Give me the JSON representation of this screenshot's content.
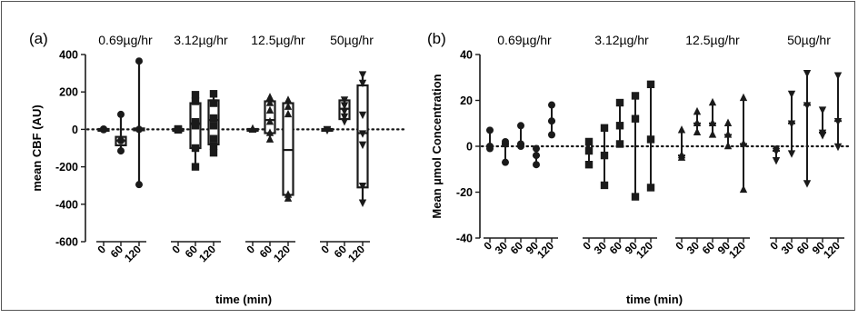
{
  "chart_data": [
    {
      "type": "box",
      "panel_label": "(a)",
      "ylabel": "mean CBF (AU)",
      "xlabel": "time (min)",
      "ylim": [
        -600,
        400
      ],
      "yticks": [
        -600,
        -400,
        -200,
        0,
        200,
        400
      ],
      "reference_line": 0,
      "groups": [
        {
          "label": "0.69µg/hr",
          "marker": "circle",
          "times": [
            "0",
            "60",
            "120"
          ],
          "boxes": [
            {
              "min": -3,
              "q1": -2,
              "median": 0,
              "q3": 2,
              "max": 3,
              "points": [
                0,
                -2,
                2
              ]
            },
            {
              "min": -115,
              "q1": -85,
              "median": -60,
              "q3": -40,
              "max": 80,
              "points": [
                80,
                -60,
                -115
              ]
            },
            {
              "min": -295,
              "q1": -5,
              "median": 0,
              "q3": 5,
              "max": 365,
              "points": [
                365,
                0,
                -295
              ]
            }
          ]
        },
        {
          "label": "3.12µg/hr",
          "marker": "square",
          "times": [
            "0",
            "60",
            "120"
          ],
          "boxes": [
            {
              "min": -3,
              "q1": -2,
              "median": 0,
              "q3": 2,
              "max": 3,
              "points": [
                0,
                -2,
                2
              ]
            },
            {
              "min": -200,
              "q1": -100,
              "median": 30,
              "q3": 140,
              "max": 185,
              "points": [
                185,
                150,
                40,
                20,
                -100,
                -200
              ]
            },
            {
              "min": -125,
              "q1": -80,
              "median": 50,
              "q3": 155,
              "max": 190,
              "points": [
                190,
                140,
                60,
                20,
                -50,
                -90,
                -125
              ]
            }
          ]
        },
        {
          "label": "12.5µg/hr",
          "marker": "triangle-up",
          "times": [
            "0",
            "60",
            "120"
          ],
          "boxes": [
            {
              "min": -3,
              "q1": -2,
              "median": 0,
              "q3": 2,
              "max": 3,
              "points": [
                0,
                -2,
                2
              ]
            },
            {
              "min": -55,
              "q1": -20,
              "median": 50,
              "q3": 150,
              "max": 170,
              "points": [
                170,
                140,
                100,
                40,
                -20,
                -55
              ]
            },
            {
              "min": -370,
              "q1": -350,
              "median": -110,
              "q3": 140,
              "max": 160,
              "points": [
                155,
                120,
                80,
                -350,
                -370
              ]
            }
          ]
        },
        {
          "label": "50µg/hr",
          "marker": "triangle-down",
          "times": [
            "0",
            "60",
            "120"
          ],
          "boxes": [
            {
              "min": -3,
              "q1": -2,
              "median": 0,
              "q3": 2,
              "max": 3,
              "points": [
                0,
                -2,
                2
              ]
            },
            {
              "min": 40,
              "q1": 55,
              "median": 110,
              "q3": 155,
              "max": 165,
              "points": [
                160,
                130,
                100,
                70,
                45
              ]
            },
            {
              "min": -390,
              "q1": -310,
              "median": -20,
              "q3": 235,
              "max": 300,
              "points": [
                295,
                250,
                80,
                -20,
                -80,
                -300,
                -390
              ]
            }
          ]
        }
      ]
    },
    {
      "type": "scatter",
      "panel_label": "(b)",
      "ylabel": "Mean µmol Concentration",
      "xlabel": "time (min)",
      "ylim": [
        -40,
        40
      ],
      "yticks": [
        -40,
        -20,
        0,
        20,
        40
      ],
      "reference_line": 0,
      "groups": [
        {
          "label": "0.69µg/hr",
          "marker": "circle",
          "times": [
            "0",
            "30",
            "60",
            "90",
            "120"
          ],
          "points": [
            {
              "min": -1,
              "mid": 0,
              "max": 7
            },
            {
              "min": -7,
              "mid": 1,
              "max": 2
            },
            {
              "min": 0,
              "mid": 1,
              "max": 9
            },
            {
              "min": -8,
              "mid": -4,
              "max": -1
            },
            {
              "min": 5,
              "mid": 11,
              "max": 18
            }
          ]
        },
        {
          "label": "3.12µg/hr",
          "marker": "square",
          "times": [
            "0",
            "30",
            "60",
            "90",
            "120"
          ],
          "points": [
            {
              "min": -8,
              "mid": -2,
              "max": 2
            },
            {
              "min": -17,
              "mid": -4,
              "max": 8
            },
            {
              "min": 1,
              "mid": 9,
              "max": 19
            },
            {
              "min": -22,
              "mid": 12,
              "max": 22
            },
            {
              "min": -18,
              "mid": 3,
              "max": 27
            }
          ]
        },
        {
          "label": "12.5µg/hr",
          "marker": "triangle-up",
          "times": [
            "0",
            "30",
            "60",
            "90",
            "120"
          ],
          "points": [
            {
              "min": -5,
              "mid": -4,
              "max": 7
            },
            {
              "min": 6,
              "mid": 10,
              "max": 15
            },
            {
              "min": 5,
              "mid": 10,
              "max": 19
            },
            {
              "min": 0,
              "mid": 5,
              "max": 10
            },
            {
              "min": -19,
              "mid": 1,
              "max": 21
            }
          ]
        },
        {
          "label": "50µg/hr",
          "marker": "triangle-down",
          "times": [
            "0",
            "30",
            "60",
            "90",
            "120"
          ],
          "points": [
            {
              "min": -6,
              "mid": -2,
              "max": -1
            },
            {
              "min": -3,
              "mid": 10,
              "max": 23
            },
            {
              "min": -16,
              "mid": 18,
              "max": 32
            },
            {
              "min": 5,
              "mid": 6,
              "max": 16
            },
            {
              "min": 0,
              "mid": 11,
              "max": 31
            }
          ]
        }
      ]
    }
  ]
}
